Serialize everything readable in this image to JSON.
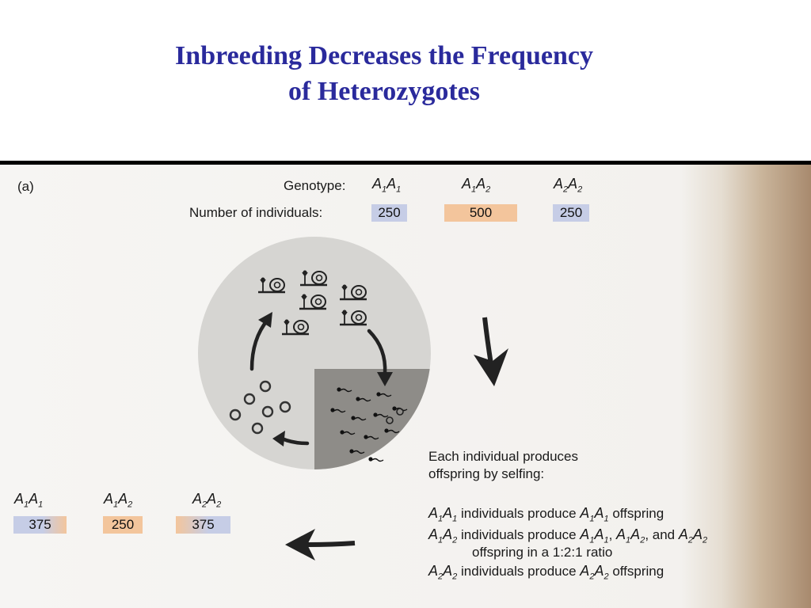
{
  "title": {
    "line1": "Inbreeding Decreases the Frequency",
    "line2": "of Heterozygotes"
  },
  "panel_label": "(a)",
  "top_row": {
    "genotype_label": "Genotype:",
    "count_label": "Number of individuals:",
    "genotypes": [
      {
        "base": "A",
        "s1": "1",
        "s2": "1",
        "count": "250",
        "color": "blue"
      },
      {
        "base": "A",
        "s1": "1",
        "s2": "2",
        "count": "500",
        "color": "orange"
      },
      {
        "base": "A",
        "s1": "2",
        "s2": "2",
        "count": "250",
        "color": "blue"
      }
    ]
  },
  "bottom_row": {
    "genotypes": [
      {
        "base": "A",
        "s1": "1",
        "s2": "1",
        "count": "375"
      },
      {
        "base": "A",
        "s1": "1",
        "s2": "2",
        "count": "250"
      },
      {
        "base": "A",
        "s1": "2",
        "s2": "2",
        "count": "375"
      }
    ]
  },
  "explanation": {
    "intro_line1": "Each individual produces",
    "intro_line2": "offspring by selfing:",
    "rule1_geno": {
      "s1": "1",
      "s2": "1"
    },
    "rule1_text": "individuals produce",
    "rule1_offspring": "offspring",
    "rule2_geno": {
      "s1": "1",
      "s2": "2"
    },
    "rule2_text": "individuals produce",
    "rule2_and": ", and",
    "rule2_line2": "offspring in a 1:2:1 ratio",
    "rule3_geno": {
      "s1": "2",
      "s2": "2"
    },
    "rule3_text": "individuals produce",
    "rule3_offspring": "offspring"
  },
  "colors": {
    "title": "#2a2a9c",
    "box_blue": "#c6cde6",
    "box_orange": "#f3c59c",
    "circle_light": "#d6d5d2",
    "circle_dark": "#8e8c88"
  },
  "icons": [
    "snail-icon",
    "egg-icon",
    "sperm-icon",
    "cycle-arrow-icon",
    "down-arrow-icon",
    "left-arrow-icon"
  ]
}
